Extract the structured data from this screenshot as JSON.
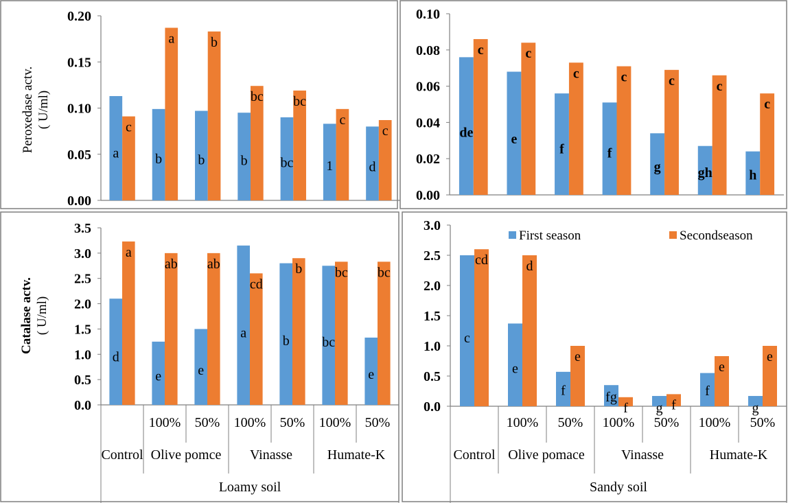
{
  "colors": {
    "first": "#5b9bd5",
    "second": "#ed7d31",
    "axis": "#7f7f7f",
    "frame": "#7f7f7f",
    "text": "#000000"
  },
  "legend": {
    "position": "top-right",
    "entries": [
      "First season",
      "Secondseason"
    ]
  },
  "categories": {
    "loamy_doses": [
      "",
      "100%",
      "50%",
      "100%",
      "50%",
      "100%",
      "50%"
    ],
    "loamy_treatments": [
      "Control",
      "Olive pomce",
      "Vinasse",
      "Humate-K"
    ],
    "loamy_soil": "Loamy soil",
    "sandy_doses": [
      "",
      "100%",
      "50%",
      "100%",
      "50%",
      "100%",
      "50%"
    ],
    "sandy_treatments": [
      "Control",
      "Olive pomace",
      "Vinasse",
      "Humate-K"
    ],
    "sandy_soil": "Sandy soil"
  },
  "chart_data": [
    {
      "type": "bar",
      "panel": "loamy-peroxidase",
      "ylabel": "Peroxedase actv.\n( U/ml)",
      "ylim": [
        0,
        0.2
      ],
      "ytick_step": 0.05,
      "ytick_decimals": 2,
      "series": [
        {
          "name": "First season",
          "values": [
            0.113,
            0.099,
            0.097,
            0.095,
            0.09,
            0.083,
            0.08
          ],
          "letters": [
            "a",
            "b",
            "b",
            "b",
            "bc",
            "1",
            "d"
          ]
        },
        {
          "name": "Secondseason",
          "values": [
            0.091,
            0.187,
            0.183,
            0.124,
            0.119,
            0.099,
            0.087
          ],
          "letters": [
            "c",
            "a",
            "b",
            "bc",
            "bc",
            "c",
            "c"
          ]
        }
      ]
    },
    {
      "type": "bar",
      "panel": "sandy-peroxidase",
      "ylabel": "",
      "ylim": [
        0,
        0.1
      ],
      "ytick_step": 0.02,
      "ytick_decimals": 2,
      "series": [
        {
          "name": "First season",
          "values": [
            0.076,
            0.068,
            0.056,
            0.051,
            0.034,
            0.027,
            0.024
          ],
          "letters": [
            "de",
            "e",
            "f",
            "f",
            "g",
            "gh",
            "h"
          ]
        },
        {
          "name": "Secondseason",
          "values": [
            0.086,
            0.084,
            0.073,
            0.071,
            0.069,
            0.066,
            0.056
          ],
          "letters": [
            "c",
            "c",
            "c",
            "c",
            "c",
            "c",
            "c"
          ]
        }
      ]
    },
    {
      "type": "bar",
      "panel": "loamy-catalase",
      "ylabel": "Catalase actv.\n( U/ml)",
      "ylim": [
        0,
        3.5
      ],
      "ytick_step": 0.5,
      "ytick_decimals": 1,
      "series": [
        {
          "name": "First season",
          "values": [
            2.1,
            1.25,
            1.5,
            3.15,
            2.8,
            2.75,
            1.33
          ],
          "letters": [
            "d",
            "e",
            "e",
            "a",
            "b",
            "bc",
            "e"
          ]
        },
        {
          "name": "Secondseason",
          "values": [
            3.23,
            3.0,
            3.0,
            2.6,
            2.9,
            2.83,
            2.83
          ],
          "letters": [
            "a",
            "ab",
            "ab",
            "cd",
            "b",
            "bc",
            "bc"
          ]
        }
      ]
    },
    {
      "type": "bar",
      "panel": "sandy-catalase",
      "ylabel": "",
      "ylim": [
        0,
        3.0
      ],
      "ytick_step": 0.5,
      "ytick_decimals": 1,
      "series": [
        {
          "name": "First season",
          "values": [
            2.5,
            1.37,
            0.57,
            0.35,
            0.17,
            0.55,
            0.17
          ],
          "letters": [
            "c",
            "e",
            "f",
            "fg",
            "g",
            "f",
            "g"
          ]
        },
        {
          "name": "Secondseason",
          "values": [
            2.6,
            2.5,
            1.0,
            0.15,
            0.2,
            0.83,
            1.0
          ],
          "letters": [
            "cd",
            "d",
            "e",
            "f",
            "f",
            "e",
            "e"
          ]
        }
      ]
    }
  ]
}
